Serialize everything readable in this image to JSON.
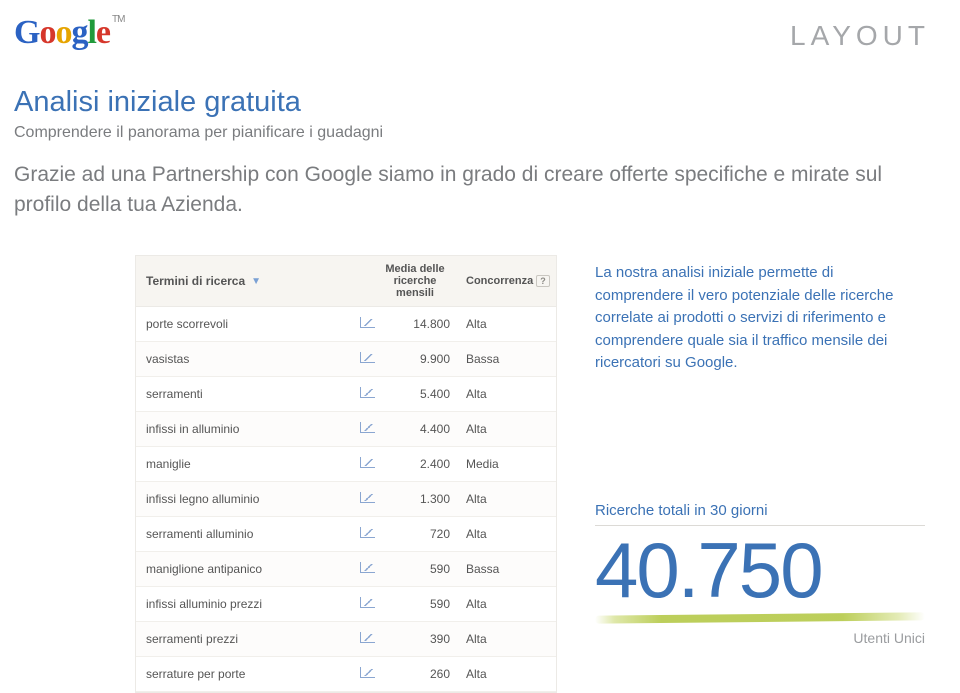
{
  "logo": {
    "letters": [
      "G",
      "o",
      "o",
      "g",
      "l",
      "e"
    ],
    "tm": "TM"
  },
  "brand_right": "LAYOUT",
  "headline": "Analisi iniziale gratuita",
  "subhead": "Comprendere il panorama per pianificare i guadagni",
  "intro": "Grazie ad una Partnership con Google siamo in grado di creare offerte specifiche e mirate sul profilo della tua Azienda.",
  "table": {
    "header": {
      "term": "Termini di ricerca",
      "media_line1": "Media delle",
      "media_line2": "ricerche",
      "media_line3": "mensili",
      "comp": "Concorrenza",
      "help": "?"
    },
    "rows": [
      {
        "term": "porte scorrevoli",
        "value": "14.800",
        "comp": "Alta"
      },
      {
        "term": "vasistas",
        "value": "9.900",
        "comp": "Bassa"
      },
      {
        "term": "serramenti",
        "value": "5.400",
        "comp": "Alta"
      },
      {
        "term": "infissi in alluminio",
        "value": "4.400",
        "comp": "Alta"
      },
      {
        "term": "maniglie",
        "value": "2.400",
        "comp": "Media"
      },
      {
        "term": "infissi legno alluminio",
        "value": "1.300",
        "comp": "Alta"
      },
      {
        "term": "serramenti alluminio",
        "value": "720",
        "comp": "Alta"
      },
      {
        "term": "maniglione antipanico",
        "value": "590",
        "comp": "Bassa"
      },
      {
        "term": "infissi alluminio prezzi",
        "value": "590",
        "comp": "Alta"
      },
      {
        "term": "serramenti prezzi",
        "value": "390",
        "comp": "Alta"
      },
      {
        "term": "serrature per porte",
        "value": "260",
        "comp": "Alta"
      }
    ],
    "colors": {
      "header_bg": "#f7f5f1",
      "border": "#eceae6",
      "text": "#555555",
      "chart_icon": "#8aa6d1"
    }
  },
  "side_text": "La nostra analisi iniziale permette di comprendere il vero potenziale delle ricerche correlate ai prodotti o servizi di riferimento e comprendere quale sia il traffico mensile dei ricercatori su Google.",
  "stat": {
    "label": "Ricerche totali in 30 giorni",
    "number": "40.750",
    "sub": "Utenti Unici"
  },
  "palette": {
    "blue": "#3b72b5",
    "grey": "#7a7c7f",
    "lightgrey": "#a5a7aa",
    "stroke": "#b9cc52"
  }
}
